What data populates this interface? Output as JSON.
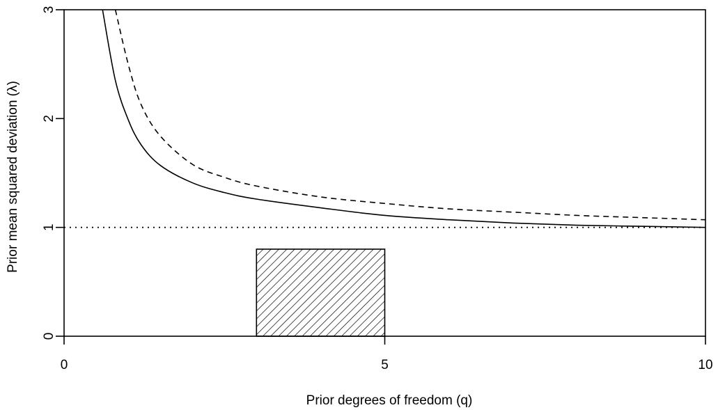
{
  "chart_data": {
    "type": "line",
    "xlabel": "Prior degrees of freedom (q)",
    "ylabel": "Prior mean squared deviation (λ)",
    "xlim": [
      0,
      10
    ],
    "ylim": [
      0,
      3
    ],
    "x_ticks": [
      "0",
      "5",
      "10"
    ],
    "y_ticks": [
      "0",
      "1",
      "2",
      "3"
    ],
    "grid": false,
    "legend": "none",
    "series": [
      {
        "style": "solid",
        "x": [
          0.6,
          0.8,
          1.0,
          1.2,
          1.5,
          2.0,
          2.5,
          3.0,
          4.0,
          5.0,
          6.0,
          7.0,
          8.0,
          9.0,
          10.0
        ],
        "y": [
          3.0,
          2.35,
          1.99,
          1.76,
          1.57,
          1.41,
          1.32,
          1.26,
          1.18,
          1.11,
          1.07,
          1.04,
          1.02,
          1.01,
          1.0
        ]
      },
      {
        "style": "dashed",
        "x": [
          0.8,
          1.0,
          1.2,
          1.5,
          2.0,
          2.5,
          3.0,
          4.0,
          5.0,
          6.0,
          7.0,
          8.0,
          9.0,
          10.0
        ],
        "y": [
          3.0,
          2.5,
          2.13,
          1.84,
          1.58,
          1.46,
          1.38,
          1.28,
          1.22,
          1.17,
          1.14,
          1.11,
          1.09,
          1.07
        ]
      },
      {
        "style": "dotted",
        "x": [
          0,
          10
        ],
        "y": [
          1.0,
          1.0
        ]
      }
    ],
    "shaded_rect": {
      "x": [
        3,
        5
      ],
      "y": [
        0,
        0.8
      ],
      "fill": "hatched"
    },
    "colors": {
      "lines": "#000000",
      "background": "#ffffff"
    }
  }
}
